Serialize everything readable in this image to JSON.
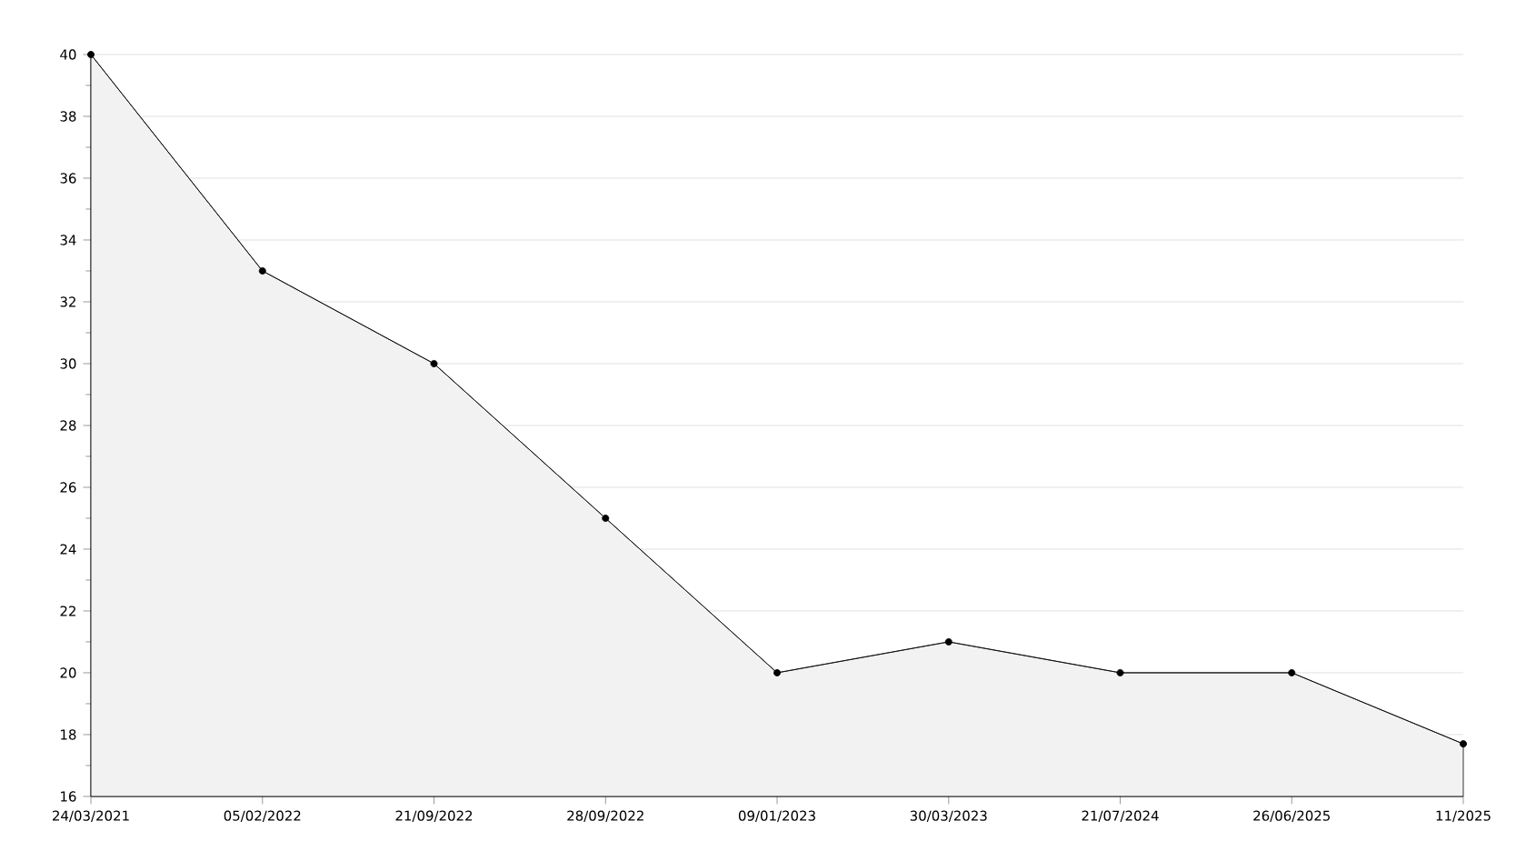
{
  "chart_data": {
    "type": "area",
    "categories": [
      "24/03/2021",
      "05/02/2022",
      "21/09/2022",
      "28/09/2022",
      "09/01/2023",
      "30/03/2023",
      "21/07/2024",
      "26/06/2025",
      "11/2025"
    ],
    "series": [
      {
        "color": "#000000",
        "values": [
          40,
          33,
          30,
          25,
          20,
          21,
          20,
          20,
          17.7
        ]
      }
    ],
    "ylim": [
      16,
      40
    ],
    "yticks": [
      16,
      18,
      20,
      22,
      24,
      26,
      28,
      30,
      32,
      34,
      36,
      38,
      40
    ],
    "grid": "y",
    "marker": "circle",
    "line_style": "solid"
  }
}
